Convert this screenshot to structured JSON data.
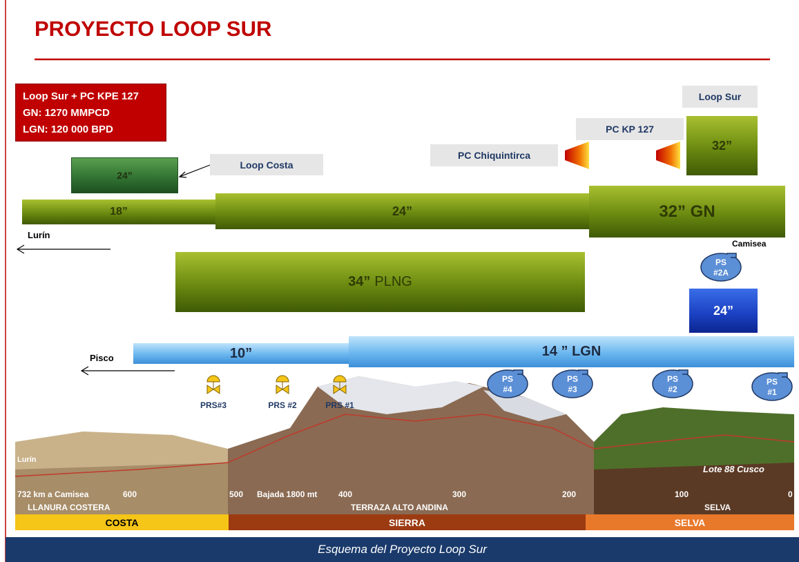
{
  "header": {
    "title": "PROYECTO LOOP SUR"
  },
  "info_box": {
    "lines": [
      "Loop Sur + PC KPE 127",
      "GN: 1270 MMPCD",
      "LGN: 120 000 BPD"
    ]
  },
  "labels": {
    "loop_sur": "Loop Sur",
    "pc_kp_127": "PC KP 127",
    "pc_chiquintirca": "PC Chiquintirca",
    "loop_costa": "Loop Costa"
  },
  "pipes": {
    "loop_costa": "24”",
    "gn_18": "18”",
    "gn_24": "24”",
    "gn_32": "32” GN",
    "loop_sur": "32”",
    "plng": {
      "size": "34”",
      "name": "PLNG"
    },
    "lgn_24": "24”",
    "lgn_10": "10”",
    "lgn_14": "14 ” LGN"
  },
  "places": {
    "lurin_arrow": "Lurín",
    "camisea": "Camisea",
    "pisco": "Pisco",
    "lurin": "Lurín",
    "lote": "Lote 88 Cusco"
  },
  "pump_stations": [
    [
      "PS",
      "#2A"
    ],
    [
      "PS",
      "#4"
    ],
    [
      "PS",
      "#3"
    ],
    [
      "PS",
      "#2"
    ],
    [
      "PS",
      "#1"
    ]
  ],
  "pressure_stations": [
    "PRS#3",
    "PRS #2",
    "PRS #1"
  ],
  "km_axis": [
    "732 km a Camisea",
    "600",
    "500",
    "Bajada 1800 mt",
    "400",
    "300",
    "200",
    "100",
    "0"
  ],
  "zones": [
    "LLANURA COSTERA",
    "TERRAZA ALTO ANDINA",
    "SELVA"
  ],
  "regions": [
    "COSTA",
    "SIERRA",
    "SELVA"
  ],
  "footer": {
    "caption": "Esquema del Proyecto Loop Sur"
  }
}
